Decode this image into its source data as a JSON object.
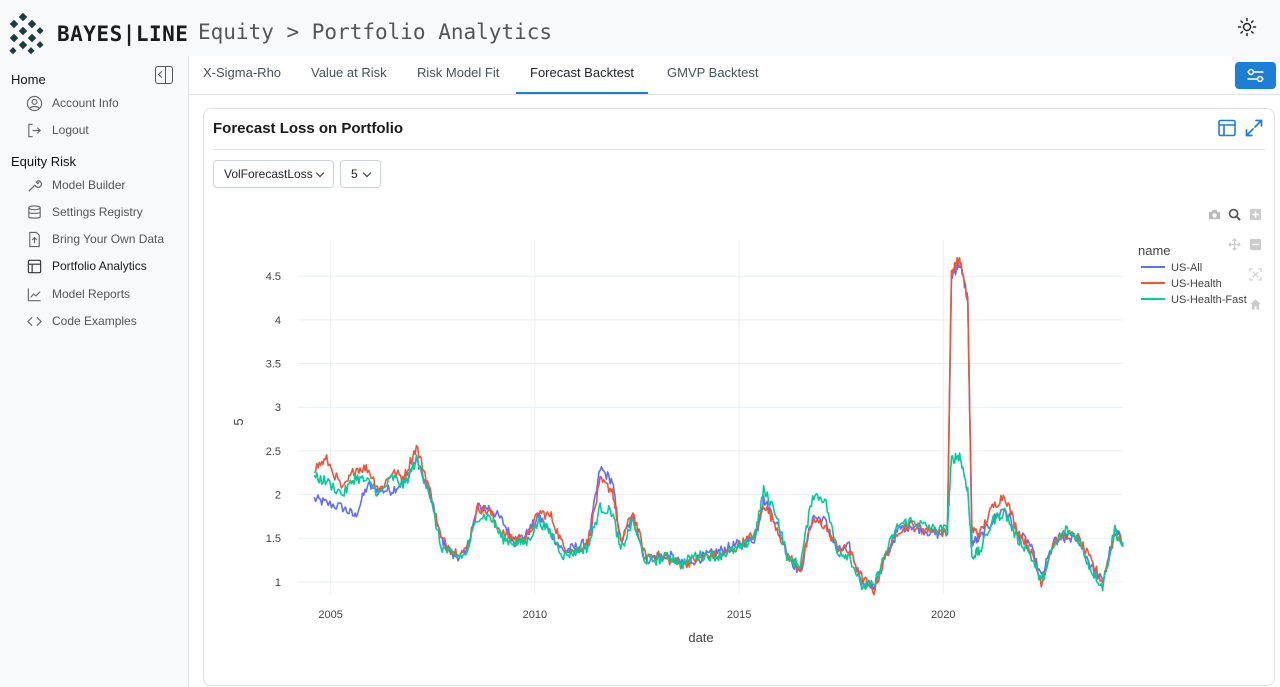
{
  "header": {
    "brand": "BAYES|LINE",
    "breadcrumb": "Equity > Portfolio Analytics",
    "theme_icon": "sun-icon"
  },
  "sidebar": {
    "home_label": "Home",
    "collapse_icon": "sidebar-collapse-icon",
    "home_items": [
      {
        "label": "Account Info",
        "icon": "user-circle-icon"
      },
      {
        "label": "Logout",
        "icon": "logout-icon"
      }
    ],
    "equity_label": "Equity Risk",
    "equity_items": [
      {
        "label": "Model Builder",
        "icon": "wrench-icon"
      },
      {
        "label": "Settings Registry",
        "icon": "database-icon"
      },
      {
        "label": "Bring Your Own Data",
        "icon": "file-upload-icon"
      },
      {
        "label": "Portfolio Analytics",
        "icon": "table-icon",
        "active": true
      },
      {
        "label": "Model Reports",
        "icon": "chart-line-icon"
      },
      {
        "label": "Code Examples",
        "icon": "code-icon"
      }
    ]
  },
  "tabs": [
    {
      "label": "X-Sigma-Rho"
    },
    {
      "label": "Value at Risk"
    },
    {
      "label": "Risk Model Fit"
    },
    {
      "label": "Forecast Backtest",
      "active": true
    },
    {
      "label": "GMVP Backtest"
    }
  ],
  "settings_icon": "sliders-icon",
  "card": {
    "title": "Forecast Loss on Portfolio",
    "icons": [
      "table-view-icon",
      "expand-icon"
    ]
  },
  "controls": {
    "metric_select": "VolForecastLoss",
    "window_select": "5"
  },
  "modebar": [
    "camera-icon",
    "zoom-icon",
    "zoom-in-icon",
    "pan-icon",
    "zoom-out-icon",
    "autoscale-icon",
    "reset-axes-icon"
  ],
  "colors": {
    "accent": "#1c7ed6",
    "us_all": "#636efa",
    "us_health": "#ef553b",
    "us_health_fast": "#00cc96"
  },
  "chart_data": {
    "type": "line",
    "title": "",
    "xlabel": "date",
    "ylabel": "5",
    "x_range": [
      2004.2,
      2024.4
    ],
    "ylim": [
      0.85,
      4.8
    ],
    "x_ticks": [
      "2005",
      "2010",
      "2015",
      "2020"
    ],
    "x_tick_values": [
      2005,
      2010,
      2015,
      2020
    ],
    "y_ticks": [
      "1",
      "1.5",
      "2",
      "2.5",
      "3",
      "3.5",
      "4",
      "4.5"
    ],
    "y_tick_values": [
      1,
      1.5,
      2,
      2.5,
      3,
      3.5,
      4,
      4.5
    ],
    "legend_title": "name",
    "legend_placement": "top-right",
    "grid": true,
    "series": [
      {
        "name": "US-All",
        "color": "#636efa",
        "points": [
          [
            2004.6,
            1.95
          ],
          [
            2004.9,
            1.9
          ],
          [
            2005.3,
            1.85
          ],
          [
            2005.6,
            1.75
          ],
          [
            2005.9,
            2.1
          ],
          [
            2006.2,
            2.05
          ],
          [
            2006.5,
            2.05
          ],
          [
            2006.8,
            2.15
          ],
          [
            2007.1,
            2.4
          ],
          [
            2007.4,
            2.05
          ],
          [
            2007.7,
            1.5
          ],
          [
            2008.0,
            1.3
          ],
          [
            2008.3,
            1.3
          ],
          [
            2008.6,
            1.85
          ],
          [
            2008.9,
            1.85
          ],
          [
            2009.2,
            1.7
          ],
          [
            2009.5,
            1.45
          ],
          [
            2009.8,
            1.55
          ],
          [
            2010.1,
            1.75
          ],
          [
            2010.4,
            1.55
          ],
          [
            2010.7,
            1.35
          ],
          [
            2011.0,
            1.4
          ],
          [
            2011.3,
            1.45
          ],
          [
            2011.6,
            2.3
          ],
          [
            2011.9,
            2.15
          ],
          [
            2012.1,
            1.45
          ],
          [
            2012.4,
            1.75
          ],
          [
            2012.7,
            1.25
          ],
          [
            2013.0,
            1.3
          ],
          [
            2013.3,
            1.3
          ],
          [
            2013.6,
            1.2
          ],
          [
            2013.9,
            1.25
          ],
          [
            2014.2,
            1.3
          ],
          [
            2014.5,
            1.35
          ],
          [
            2014.8,
            1.4
          ],
          [
            2015.1,
            1.45
          ],
          [
            2015.4,
            1.5
          ],
          [
            2015.6,
            1.95
          ],
          [
            2015.9,
            1.7
          ],
          [
            2016.2,
            1.3
          ],
          [
            2016.5,
            1.1
          ],
          [
            2016.8,
            1.75
          ],
          [
            2017.1,
            1.7
          ],
          [
            2017.4,
            1.35
          ],
          [
            2017.7,
            1.4
          ],
          [
            2018.0,
            1.0
          ],
          [
            2018.3,
            0.95
          ],
          [
            2018.6,
            1.3
          ],
          [
            2018.9,
            1.6
          ],
          [
            2019.2,
            1.65
          ],
          [
            2019.5,
            1.6
          ],
          [
            2019.8,
            1.55
          ],
          [
            2020.1,
            1.55
          ],
          [
            2020.2,
            4.5
          ],
          [
            2020.4,
            4.65
          ],
          [
            2020.6,
            4.25
          ],
          [
            2020.7,
            1.45
          ],
          [
            2020.9,
            1.5
          ],
          [
            2021.2,
            1.7
          ],
          [
            2021.5,
            1.85
          ],
          [
            2021.8,
            1.55
          ],
          [
            2022.1,
            1.45
          ],
          [
            2022.4,
            1.05
          ],
          [
            2022.7,
            1.45
          ],
          [
            2023.0,
            1.5
          ],
          [
            2023.3,
            1.5
          ],
          [
            2023.6,
            1.2
          ],
          [
            2023.9,
            1.0
          ],
          [
            2024.2,
            1.6
          ],
          [
            2024.4,
            1.45
          ]
        ]
      },
      {
        "name": "US-Health",
        "color": "#ef553b",
        "points": [
          [
            2004.6,
            2.3
          ],
          [
            2004.9,
            2.4
          ],
          [
            2005.3,
            2.05
          ],
          [
            2005.6,
            2.3
          ],
          [
            2005.9,
            2.3
          ],
          [
            2006.2,
            2.05
          ],
          [
            2006.5,
            2.25
          ],
          [
            2006.8,
            2.2
          ],
          [
            2007.1,
            2.55
          ],
          [
            2007.4,
            2.1
          ],
          [
            2007.7,
            1.5
          ],
          [
            2008.0,
            1.35
          ],
          [
            2008.3,
            1.35
          ],
          [
            2008.6,
            1.85
          ],
          [
            2008.9,
            1.8
          ],
          [
            2009.2,
            1.55
          ],
          [
            2009.5,
            1.5
          ],
          [
            2009.8,
            1.5
          ],
          [
            2010.1,
            1.8
          ],
          [
            2010.4,
            1.75
          ],
          [
            2010.7,
            1.4
          ],
          [
            2011.0,
            1.35
          ],
          [
            2011.3,
            1.45
          ],
          [
            2011.6,
            2.15
          ],
          [
            2011.9,
            2.05
          ],
          [
            2012.1,
            1.45
          ],
          [
            2012.4,
            1.8
          ],
          [
            2012.7,
            1.3
          ],
          [
            2013.0,
            1.3
          ],
          [
            2013.3,
            1.25
          ],
          [
            2013.6,
            1.2
          ],
          [
            2013.9,
            1.25
          ],
          [
            2014.2,
            1.3
          ],
          [
            2014.5,
            1.3
          ],
          [
            2014.8,
            1.35
          ],
          [
            2015.1,
            1.45
          ],
          [
            2015.4,
            1.55
          ],
          [
            2015.6,
            1.9
          ],
          [
            2015.9,
            1.65
          ],
          [
            2016.2,
            1.3
          ],
          [
            2016.5,
            1.15
          ],
          [
            2016.8,
            1.7
          ],
          [
            2017.1,
            1.65
          ],
          [
            2017.4,
            1.4
          ],
          [
            2017.7,
            1.35
          ],
          [
            2018.0,
            1.05
          ],
          [
            2018.3,
            0.9
          ],
          [
            2018.6,
            1.3
          ],
          [
            2018.9,
            1.6
          ],
          [
            2019.2,
            1.65
          ],
          [
            2019.5,
            1.6
          ],
          [
            2019.8,
            1.6
          ],
          [
            2020.1,
            1.55
          ],
          [
            2020.2,
            4.55
          ],
          [
            2020.4,
            4.7
          ],
          [
            2020.6,
            4.2
          ],
          [
            2020.7,
            1.6
          ],
          [
            2020.9,
            1.55
          ],
          [
            2021.2,
            1.85
          ],
          [
            2021.5,
            2.0
          ],
          [
            2021.8,
            1.6
          ],
          [
            2022.1,
            1.4
          ],
          [
            2022.4,
            1.0
          ],
          [
            2022.7,
            1.45
          ],
          [
            2023.0,
            1.55
          ],
          [
            2023.3,
            1.5
          ],
          [
            2023.6,
            1.25
          ],
          [
            2023.9,
            1.0
          ],
          [
            2024.2,
            1.55
          ],
          [
            2024.4,
            1.45
          ]
        ]
      },
      {
        "name": "US-Health-Fast",
        "color": "#00cc96",
        "points": [
          [
            2004.6,
            2.2
          ],
          [
            2004.9,
            2.15
          ],
          [
            2005.3,
            2.0
          ],
          [
            2005.6,
            2.2
          ],
          [
            2005.9,
            2.15
          ],
          [
            2006.2,
            2.0
          ],
          [
            2006.5,
            2.2
          ],
          [
            2006.8,
            2.1
          ],
          [
            2007.1,
            2.4
          ],
          [
            2007.4,
            2.05
          ],
          [
            2007.7,
            1.4
          ],
          [
            2008.0,
            1.3
          ],
          [
            2008.3,
            1.3
          ],
          [
            2008.6,
            1.75
          ],
          [
            2008.9,
            1.75
          ],
          [
            2009.2,
            1.5
          ],
          [
            2009.5,
            1.45
          ],
          [
            2009.8,
            1.45
          ],
          [
            2010.1,
            1.7
          ],
          [
            2010.4,
            1.55
          ],
          [
            2010.7,
            1.3
          ],
          [
            2011.0,
            1.35
          ],
          [
            2011.3,
            1.4
          ],
          [
            2011.6,
            1.85
          ],
          [
            2011.9,
            1.8
          ],
          [
            2012.1,
            1.35
          ],
          [
            2012.4,
            1.7
          ],
          [
            2012.7,
            1.25
          ],
          [
            2013.0,
            1.25
          ],
          [
            2013.3,
            1.3
          ],
          [
            2013.6,
            1.2
          ],
          [
            2013.9,
            1.3
          ],
          [
            2014.2,
            1.3
          ],
          [
            2014.5,
            1.3
          ],
          [
            2014.8,
            1.35
          ],
          [
            2015.1,
            1.4
          ],
          [
            2015.4,
            1.55
          ],
          [
            2015.6,
            2.05
          ],
          [
            2015.9,
            1.8
          ],
          [
            2016.2,
            1.25
          ],
          [
            2016.5,
            1.2
          ],
          [
            2016.8,
            2.0
          ],
          [
            2017.1,
            1.95
          ],
          [
            2017.4,
            1.35
          ],
          [
            2017.7,
            1.3
          ],
          [
            2018.0,
            0.95
          ],
          [
            2018.3,
            0.95
          ],
          [
            2018.6,
            1.35
          ],
          [
            2018.9,
            1.65
          ],
          [
            2019.2,
            1.7
          ],
          [
            2019.5,
            1.65
          ],
          [
            2019.8,
            1.6
          ],
          [
            2020.1,
            1.6
          ],
          [
            2020.2,
            2.4
          ],
          [
            2020.4,
            2.45
          ],
          [
            2020.6,
            2.05
          ],
          [
            2020.7,
            1.3
          ],
          [
            2020.9,
            1.35
          ],
          [
            2021.2,
            1.7
          ],
          [
            2021.5,
            1.8
          ],
          [
            2021.8,
            1.5
          ],
          [
            2022.1,
            1.35
          ],
          [
            2022.4,
            1.0
          ],
          [
            2022.7,
            1.4
          ],
          [
            2023.0,
            1.6
          ],
          [
            2023.3,
            1.5
          ],
          [
            2023.6,
            1.15
          ],
          [
            2023.9,
            0.95
          ],
          [
            2024.2,
            1.6
          ],
          [
            2024.4,
            1.4
          ]
        ]
      }
    ]
  }
}
